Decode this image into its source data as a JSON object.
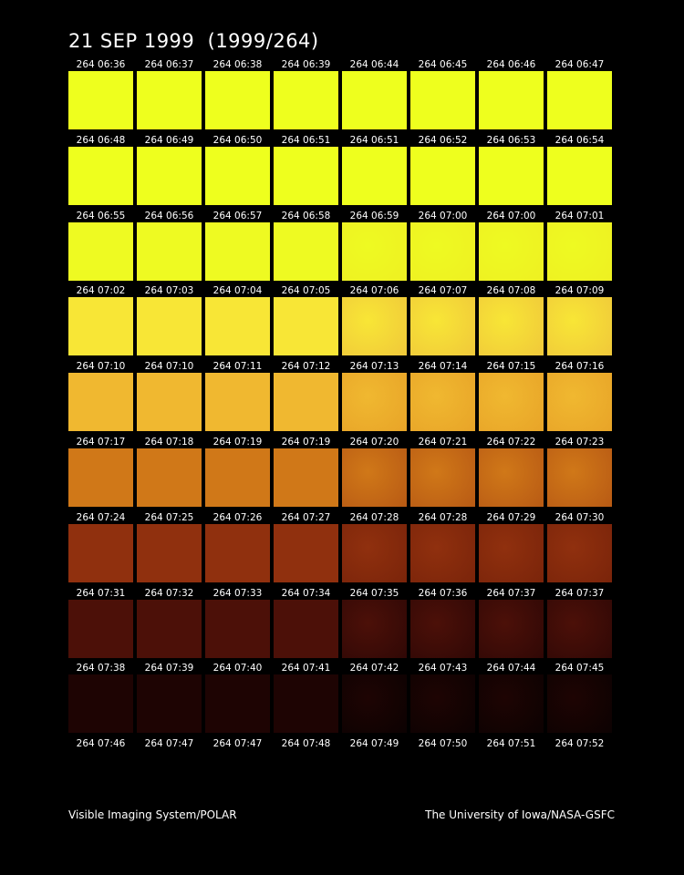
{
  "header": {
    "title": "21 SEP 1999  (1999/264)"
  },
  "frames": {
    "rows": [
      [
        "264 06:36",
        "264 06:37",
        "264 06:38",
        "264 06:39",
        "264 06:44",
        "264 06:45",
        "264 06:46",
        "264 06:47"
      ],
      [
        "264 06:48",
        "264 06:49",
        "264 06:50",
        "264 06:51",
        "264 06:51",
        "264 06:52",
        "264 06:53",
        "264 06:54"
      ],
      [
        "264 06:55",
        "264 06:56",
        "264 06:57",
        "264 06:58",
        "264 06:59",
        "264 07:00",
        "264 07:00",
        "264 07:01"
      ],
      [
        "264 07:02",
        "264 07:03",
        "264 07:04",
        "264 07:05",
        "264 07:06",
        "264 07:07",
        "264 07:08",
        "264 07:09"
      ],
      [
        "264 07:10",
        "264 07:10",
        "264 07:11",
        "264 07:12",
        "264 07:13",
        "264 07:14",
        "264 07:15",
        "264 07:16"
      ],
      [
        "264 07:17",
        "264 07:18",
        "264 07:19",
        "264 07:19",
        "264 07:20",
        "264 07:21",
        "264 07:22",
        "264 07:23"
      ],
      [
        "264 07:24",
        "264 07:25",
        "264 07:26",
        "264 07:27",
        "264 07:28",
        "264 07:28",
        "264 07:29",
        "264 07:30"
      ],
      [
        "264 07:31",
        "264 07:32",
        "264 07:33",
        "264 07:34",
        "264 07:35",
        "264 07:36",
        "264 07:37",
        "264 07:37"
      ],
      [
        "264 07:38",
        "264 07:39",
        "264 07:40",
        "264 07:41",
        "264 07:42",
        "264 07:43",
        "264 07:44",
        "264 07:45"
      ],
      [
        "264 07:46",
        "264 07:47",
        "264 07:47",
        "264 07:48",
        "264 07:49",
        "264 07:50",
        "264 07:51",
        "264 07:52"
      ]
    ]
  },
  "footer": {
    "left": "Visible Imaging System/POLAR",
    "right": "The University of Iowa/NASA-GSFC"
  }
}
